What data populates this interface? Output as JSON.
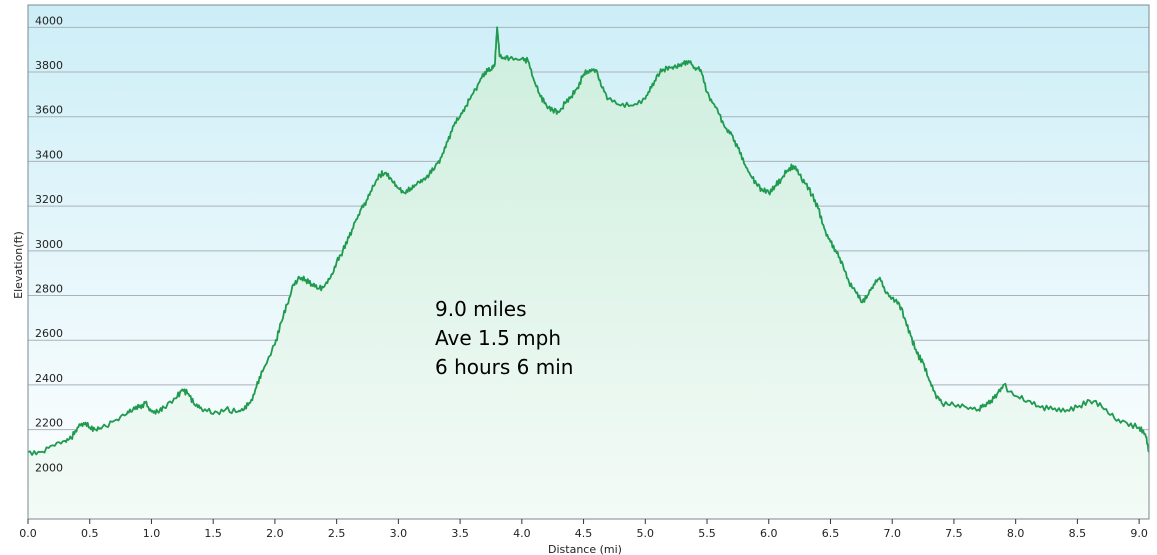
{
  "chart_data": {
    "type": "area",
    "title": "",
    "xlabel": "Distance  (mi)",
    "ylabel": "Elevation(ft)",
    "xlim": [
      0.0,
      9.08
    ],
    "ylim": [
      1800,
      4100
    ],
    "grid": true,
    "x_ticks": [
      "0.0",
      "0.5",
      "1.0",
      "1.5",
      "2.0",
      "2.5",
      "3.0",
      "3.5",
      "4.0",
      "4.5",
      "5.0",
      "5.5",
      "6.0",
      "6.5",
      "7.0",
      "7.5",
      "8.0",
      "8.5",
      "9.0"
    ],
    "y_ticks": [
      "2000",
      "2200",
      "2400",
      "2600",
      "2800",
      "3000",
      "3200",
      "3400",
      "3600",
      "3800",
      "4000"
    ],
    "annotations": [
      "9.0 miles",
      "Ave 1.5 mph",
      "6 hours 6 min"
    ],
    "colors": {
      "line": "#1f9a4f",
      "fill_top": "#cdeedd",
      "fill_bottom": "#f4fbf7",
      "bg_top": "#cdeef7",
      "bg_bottom": "#ffffff",
      "grid": "#a9b3b8",
      "axis": "#333333"
    },
    "series": [
      {
        "x": [
          0.0,
          0.1,
          0.2,
          0.3,
          0.35,
          0.4,
          0.45,
          0.5,
          0.55,
          0.6,
          0.7,
          0.8,
          0.85,
          0.9,
          0.95,
          1.0,
          1.05,
          1.1,
          1.2,
          1.25,
          1.3,
          1.35,
          1.4,
          1.5,
          1.6,
          1.7,
          1.75,
          1.8,
          1.85,
          1.9,
          2.0,
          2.05,
          2.1,
          2.15,
          2.2,
          2.25,
          2.3,
          2.35,
          2.4,
          2.45,
          2.5,
          2.55,
          2.6,
          2.65,
          2.7,
          2.75,
          2.8,
          2.85,
          2.9,
          2.95,
          3.0,
          3.05,
          3.1,
          3.15,
          3.2,
          3.25,
          3.3,
          3.35,
          3.4,
          3.45,
          3.5,
          3.55,
          3.6,
          3.65,
          3.7,
          3.75,
          3.78,
          3.8,
          3.82,
          3.85,
          3.9,
          4.0,
          4.05,
          4.1,
          4.15,
          4.2,
          4.25,
          4.3,
          4.35,
          4.4,
          4.45,
          4.5,
          4.55,
          4.6,
          4.65,
          4.7,
          4.8,
          4.9,
          5.0,
          5.05,
          5.1,
          5.15,
          5.2,
          5.25,
          5.3,
          5.35,
          5.4,
          5.45,
          5.5,
          5.55,
          5.6,
          5.65,
          5.7,
          5.75,
          5.8,
          5.85,
          5.9,
          5.95,
          6.0,
          6.05,
          6.1,
          6.15,
          6.2,
          6.25,
          6.3,
          6.35,
          6.4,
          6.45,
          6.5,
          6.55,
          6.6,
          6.65,
          6.7,
          6.75,
          6.8,
          6.85,
          6.9,
          6.95,
          7.0,
          7.05,
          7.1,
          7.15,
          7.2,
          7.25,
          7.3,
          7.35,
          7.4,
          7.5,
          7.6,
          7.7,
          7.75,
          7.8,
          7.85,
          7.9,
          8.0,
          8.1,
          8.2,
          8.3,
          8.4,
          8.5,
          8.6,
          8.7,
          8.8,
          8.9,
          9.0,
          9.05,
          9.08
        ],
        "y": [
          2100,
          2100,
          2130,
          2150,
          2160,
          2210,
          2230,
          2210,
          2200,
          2210,
          2240,
          2270,
          2290,
          2300,
          2320,
          2280,
          2280,
          2300,
          2340,
          2380,
          2360,
          2310,
          2300,
          2270,
          2290,
          2280,
          2290,
          2320,
          2390,
          2460,
          2580,
          2680,
          2760,
          2850,
          2880,
          2870,
          2850,
          2830,
          2840,
          2880,
          2950,
          3000,
          3060,
          3130,
          3190,
          3230,
          3290,
          3340,
          3350,
          3310,
          3280,
          3260,
          3280,
          3300,
          3320,
          3340,
          3380,
          3420,
          3490,
          3560,
          3600,
          3650,
          3700,
          3750,
          3800,
          3810,
          3830,
          4000,
          3870,
          3860,
          3860,
          3860,
          3850,
          3760,
          3690,
          3650,
          3630,
          3620,
          3660,
          3690,
          3730,
          3790,
          3810,
          3810,
          3730,
          3680,
          3650,
          3650,
          3680,
          3730,
          3790,
          3810,
          3820,
          3820,
          3840,
          3850,
          3820,
          3810,
          3710,
          3660,
          3610,
          3550,
          3520,
          3460,
          3390,
          3340,
          3300,
          3270,
          3260,
          3290,
          3320,
          3360,
          3380,
          3340,
          3300,
          3250,
          3190,
          3100,
          3040,
          2990,
          2940,
          2860,
          2820,
          2770,
          2800,
          2850,
          2880,
          2810,
          2790,
          2770,
          2700,
          2620,
          2540,
          2500,
          2420,
          2360,
          2320,
          2310,
          2300,
          2290,
          2310,
          2330,
          2360,
          2400,
          2350,
          2330,
          2300,
          2290,
          2280,
          2300,
          2330,
          2300,
          2250,
          2230,
          2210,
          2180,
          2100
        ]
      }
    ]
  }
}
